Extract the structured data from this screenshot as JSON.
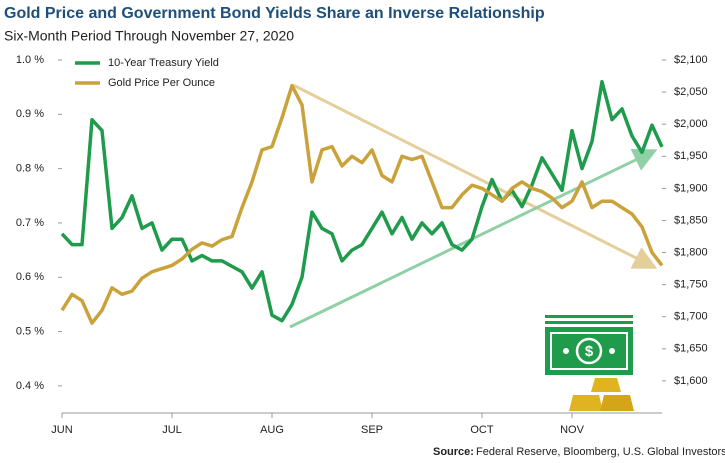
{
  "chart_data": {
    "type": "line",
    "title": "Gold Price and Government Bond Yields Share an Inverse Relationship",
    "subtitle": "Six-Month Period Through November 27, 2020",
    "source_label": "Source:",
    "source": "Federal Reserve, Bloomberg, U.S. Global Investors",
    "categories": [
      "JUN",
      null,
      null,
      null,
      null,
      null,
      null,
      null,
      null,
      null,
      null,
      "JUL",
      null,
      null,
      null,
      null,
      null,
      null,
      null,
      null,
      null,
      "AUG",
      null,
      null,
      null,
      null,
      null,
      null,
      null,
      null,
      null,
      "SEP",
      null,
      null,
      null,
      null,
      null,
      null,
      null,
      null,
      null,
      null,
      "OCT",
      null,
      null,
      null,
      null,
      null,
      null,
      null,
      null,
      "NOV",
      null,
      null,
      null,
      null,
      null,
      null,
      null,
      null,
      null
    ],
    "series": [
      {
        "name": "10-Year Treasury Yield",
        "color": "#1e9b4b",
        "axis": "y",
        "values": [
          0.68,
          0.66,
          0.66,
          0.89,
          0.87,
          0.69,
          0.71,
          0.75,
          0.69,
          0.7,
          0.65,
          0.67,
          0.67,
          0.63,
          0.64,
          0.63,
          0.63,
          0.62,
          0.61,
          0.58,
          0.61,
          0.53,
          0.52,
          0.55,
          0.6,
          0.72,
          0.69,
          0.68,
          0.63,
          0.65,
          0.66,
          0.69,
          0.72,
          0.68,
          0.71,
          0.67,
          0.7,
          0.68,
          0.7,
          0.66,
          0.65,
          0.67,
          0.73,
          0.78,
          0.74,
          0.76,
          0.73,
          0.77,
          0.82,
          0.79,
          0.76,
          0.87,
          0.8,
          0.85,
          0.96,
          0.89,
          0.91,
          0.86,
          0.83,
          0.88,
          0.84
        ]
      },
      {
        "name": "Gold Price Per Ounce",
        "color": "#c9a23a",
        "axis": "y2",
        "values": [
          1710,
          1735,
          1725,
          1690,
          1710,
          1745,
          1735,
          1740,
          1760,
          1770,
          1775,
          1780,
          1790,
          1805,
          1815,
          1810,
          1820,
          1825,
          1870,
          1910,
          1960,
          1965,
          2010,
          2060,
          2030,
          1910,
          1960,
          1965,
          1935,
          1950,
          1940,
          1960,
          1920,
          1910,
          1950,
          1945,
          1950,
          1910,
          1870,
          1870,
          1890,
          1905,
          1900,
          1890,
          1880,
          1900,
          1910,
          1900,
          1895,
          1885,
          1870,
          1880,
          1910,
          1870,
          1880,
          1880,
          1870,
          1860,
          1840,
          1800,
          1780
        ]
      }
    ],
    "ylim": [
      0.35,
      1.0
    ],
    "yticks": [
      {
        "value": 0.4,
        "label": "0.4 %"
      },
      {
        "value": 0.5,
        "label": "0.5 %"
      },
      {
        "value": 0.6,
        "label": "0.6 %"
      },
      {
        "value": 0.7,
        "label": "0.7 %"
      },
      {
        "value": 0.8,
        "label": "0.8 %"
      },
      {
        "value": 0.9,
        "label": "0.9 %"
      },
      {
        "value": 1.0,
        "label": "1.0 %"
      }
    ],
    "y2lim": [
      1550,
      2100
    ],
    "y2ticks": [
      {
        "value": 1600,
        "label": "$1,600"
      },
      {
        "value": 1650,
        "label": "$1,650"
      },
      {
        "value": 1700,
        "label": "$1,700"
      },
      {
        "value": 1750,
        "label": "$1,750"
      },
      {
        "value": 1800,
        "label": "$1,800"
      },
      {
        "value": 1850,
        "label": "$1,850"
      },
      {
        "value": 1900,
        "label": "$1,900"
      },
      {
        "value": 1950,
        "label": "$1,950"
      },
      {
        "value": 2000,
        "label": "$2,000"
      },
      {
        "value": 2050,
        "label": "$2,050"
      },
      {
        "value": 2100,
        "label": "$2,100"
      }
    ],
    "legend": "upper left",
    "grid": false
  }
}
